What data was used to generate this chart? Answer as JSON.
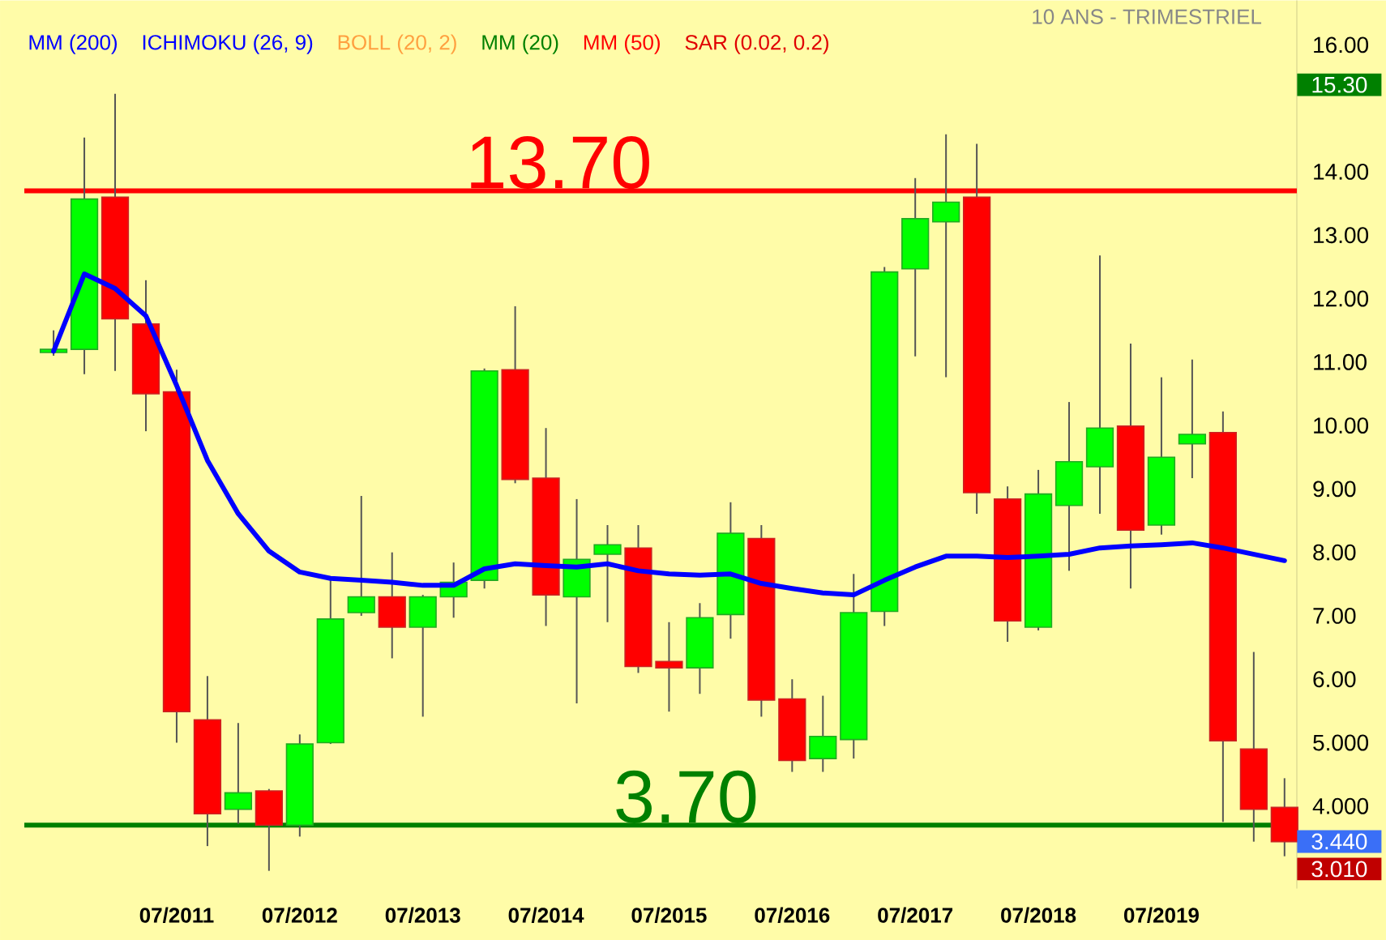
{
  "chart_data": {
    "type": "candlestick",
    "subtitle": "10 ANS - TRIMESTRIEL",
    "categories": [
      null,
      null,
      null,
      null,
      "07/2011",
      null,
      null,
      null,
      "07/2012",
      null,
      null,
      null,
      "07/2013",
      null,
      null,
      null,
      "07/2014",
      null,
      null,
      null,
      "07/2015",
      null,
      null,
      null,
      "07/2016",
      null,
      null,
      null,
      "07/2017",
      null,
      null,
      null,
      "07/2018",
      null,
      null,
      null,
      "07/2019",
      null,
      null,
      null,
      null
    ],
    "ohlc": [
      [
        11.15,
        11.5,
        11.1,
        11.2
      ],
      [
        11.2,
        14.54,
        10.81,
        13.57
      ],
      [
        13.6,
        15.23,
        10.86,
        11.68
      ],
      [
        11.6,
        12.29,
        9.91,
        10.5
      ],
      [
        10.53,
        10.88,
        5.0,
        5.49
      ],
      [
        5.36,
        6.05,
        3.37,
        3.88
      ],
      [
        3.95,
        5.31,
        3.72,
        4.21
      ],
      [
        4.24,
        4.27,
        2.98,
        3.7
      ],
      [
        3.7,
        5.13,
        3.52,
        4.98
      ],
      [
        5.0,
        7.56,
        4.98,
        6.95
      ],
      [
        7.05,
        8.89,
        7.0,
        7.3
      ],
      [
        7.3,
        8.0,
        6.33,
        6.82
      ],
      [
        6.82,
        7.33,
        5.41,
        7.3
      ],
      [
        7.3,
        7.84,
        6.97,
        7.53
      ],
      [
        7.56,
        10.9,
        7.43,
        10.86
      ],
      [
        10.88,
        11.88,
        9.09,
        9.15
      ],
      [
        9.17,
        9.96,
        6.84,
        7.33
      ],
      [
        7.3,
        8.84,
        5.62,
        7.89
      ],
      [
        7.97,
        8.43,
        6.9,
        8.12
      ],
      [
        8.07,
        8.43,
        6.1,
        6.2
      ],
      [
        6.28,
        6.9,
        5.49,
        6.18
      ],
      [
        6.18,
        7.2,
        5.77,
        6.97
      ],
      [
        7.02,
        8.79,
        6.64,
        8.3
      ],
      [
        8.22,
        8.43,
        5.41,
        5.67
      ],
      [
        5.69,
        6.0,
        4.54,
        4.72
      ],
      [
        4.75,
        5.74,
        4.54,
        5.1
      ],
      [
        5.05,
        7.66,
        4.75,
        7.05
      ],
      [
        7.07,
        12.5,
        6.84,
        12.42
      ],
      [
        12.47,
        13.9,
        11.09,
        13.26
      ],
      [
        13.21,
        14.59,
        10.76,
        13.52
      ],
      [
        13.6,
        14.44,
        8.61,
        8.94
      ],
      [
        8.84,
        9.04,
        6.59,
        6.92
      ],
      [
        6.82,
        9.3,
        6.77,
        8.92
      ],
      [
        8.74,
        10.37,
        7.71,
        9.43
      ],
      [
        9.35,
        12.68,
        8.61,
        9.96
      ],
      [
        9.99,
        11.29,
        7.43,
        8.35
      ],
      [
        8.43,
        10.76,
        8.28,
        9.5
      ],
      [
        9.71,
        11.04,
        9.17,
        9.86
      ],
      [
        9.89,
        10.22,
        3.75,
        5.03
      ],
      [
        4.9,
        6.43,
        3.44,
        3.95
      ],
      [
        3.98,
        4.44,
        3.21,
        3.44
      ]
    ],
    "series": [
      {
        "type": "line",
        "name": "MM (200)",
        "color": "#0000ff",
        "values": [
          11.17,
          12.39,
          12.16,
          11.73,
          10.63,
          9.45,
          8.61,
          8.02,
          7.69,
          7.59,
          7.56,
          7.53,
          7.48,
          7.48,
          7.74,
          7.82,
          7.79,
          7.77,
          7.82,
          7.71,
          7.66,
          7.64,
          7.66,
          7.51,
          7.43,
          7.36,
          7.33,
          7.56,
          7.77,
          7.94,
          7.94,
          7.92,
          7.94,
          7.97,
          8.07,
          8.1,
          8.12,
          8.15,
          8.07,
          7.97,
          7.87
        ]
      },
      {
        "type": "line",
        "name": "ICHIMOKU (26, 9)",
        "color": "#0000ff",
        "values": [
          null,
          null,
          null,
          null,
          null,
          null,
          null,
          null,
          null,
          null,
          null,
          null,
          null,
          null,
          null,
          null,
          null,
          null,
          null,
          null,
          null,
          null,
          null,
          null,
          null,
          null,
          null,
          null,
          null,
          null,
          null,
          null,
          null,
          null,
          null,
          null,
          null,
          null,
          null,
          null,
          null
        ]
      },
      {
        "type": "line",
        "name": "BOLL (20, 2)",
        "color": "#ffa040",
        "values": [
          null,
          null,
          null,
          null,
          null,
          null,
          null,
          null,
          null,
          null,
          null,
          null,
          null,
          null,
          null,
          null,
          null,
          null,
          null,
          null,
          null,
          null,
          null,
          null,
          null,
          null,
          null,
          null,
          null,
          null,
          null,
          null,
          null,
          null,
          null,
          null,
          null,
          null,
          null,
          null,
          null
        ]
      },
      {
        "type": "line",
        "name": "MM (20)",
        "color": "#008000",
        "values": [
          null,
          null,
          null,
          null,
          null,
          null,
          null,
          null,
          null,
          null,
          null,
          null,
          null,
          null,
          null,
          null,
          null,
          null,
          null,
          null,
          null,
          null,
          null,
          null,
          null,
          null,
          null,
          null,
          null,
          null,
          null,
          null,
          null,
          null,
          null,
          null,
          null,
          null,
          null,
          null,
          null
        ]
      },
      {
        "type": "line",
        "name": "MM (50)",
        "color": "#ff0000",
        "values": [
          null,
          null,
          null,
          null,
          null,
          null,
          null,
          null,
          null,
          null,
          null,
          null,
          null,
          null,
          null,
          null,
          null,
          null,
          null,
          null,
          null,
          null,
          null,
          null,
          null,
          null,
          null,
          null,
          null,
          null,
          null,
          null,
          null,
          null,
          null,
          null,
          null,
          null,
          null,
          null,
          null
        ]
      },
      {
        "type": "line",
        "name": "SAR (0.02, 0.2)",
        "color": "#e00000",
        "values": [
          null,
          null,
          null,
          null,
          null,
          null,
          null,
          null,
          null,
          null,
          null,
          null,
          null,
          null,
          null,
          null,
          null,
          null,
          null,
          null,
          null,
          null,
          null,
          null,
          null,
          null,
          null,
          null,
          null,
          null,
          null,
          null,
          null,
          null,
          null,
          null,
          null,
          null,
          null,
          null,
          null
        ]
      }
    ],
    "ylim": [
      2.7,
      16.7
    ],
    "yticks": [
      {
        "value": 4,
        "label": "4.000"
      },
      {
        "value": 5,
        "label": "5.000"
      },
      {
        "value": 6,
        "label": "6.00"
      },
      {
        "value": 7,
        "label": "7.00"
      },
      {
        "value": 8,
        "label": "8.00"
      },
      {
        "value": 9,
        "label": "9.00"
      },
      {
        "value": 10,
        "label": "10.00"
      },
      {
        "value": 11,
        "label": "11.00"
      },
      {
        "value": 12,
        "label": "12.00"
      },
      {
        "value": 13,
        "label": "13.00"
      },
      {
        "value": 14,
        "label": "14.00"
      },
      {
        "value": 16,
        "label": "16.00"
      }
    ],
    "ref_lines": [
      {
        "axis": "y",
        "value": 13.7,
        "label": "13.70",
        "color": "#ff0000"
      },
      {
        "axis": "y",
        "value": 3.7,
        "label": "3.70",
        "color": "#008000"
      }
    ],
    "annotations": [
      "15.30",
      "3.440",
      "3.010"
    ],
    "legend": "top left"
  }
}
